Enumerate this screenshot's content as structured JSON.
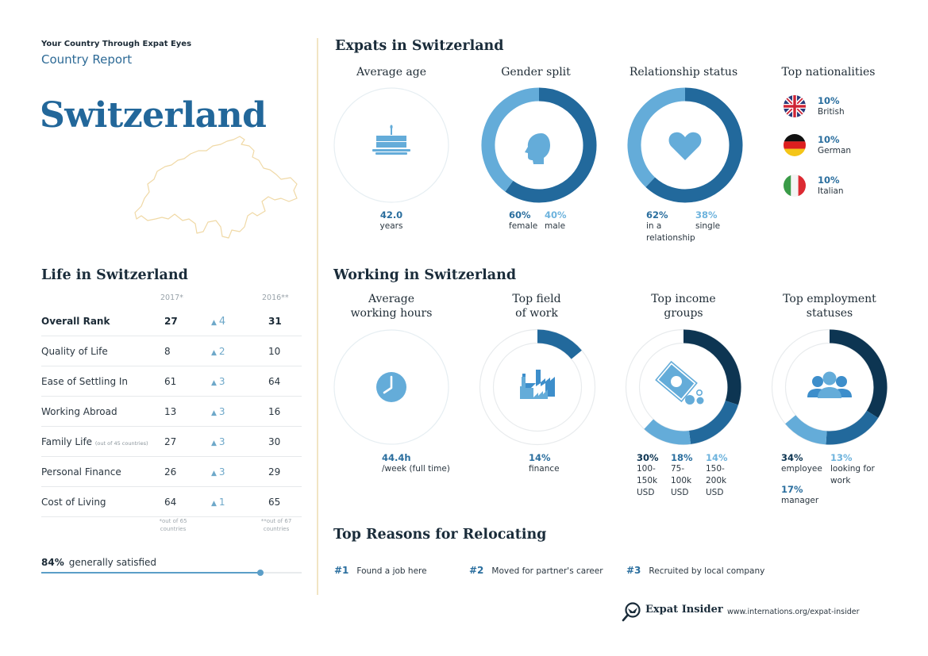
{
  "header": {
    "kicker": "Your Country Through Expat Eyes",
    "subtitle": "Country Report",
    "country": "Switzerland"
  },
  "life": {
    "title": "Life in Switzerland",
    "col_2017": "2017*",
    "col_2016": "2016**",
    "rows": [
      {
        "label": "Overall Rank",
        "note": "",
        "v2017": "27",
        "change": "4",
        "v2016": "31"
      },
      {
        "label": "Quality of Life",
        "note": "",
        "v2017": "8",
        "change": "2",
        "v2016": "10"
      },
      {
        "label": "Ease of Settling In",
        "note": "",
        "v2017": "61",
        "change": "3",
        "v2016": "64"
      },
      {
        "label": "Working Abroad",
        "note": "",
        "v2017": "13",
        "change": "3",
        "v2016": "16"
      },
      {
        "label": "Family Life",
        "note": "(out of 45 countries)",
        "v2017": "27",
        "change": "3",
        "v2016": "30"
      },
      {
        "label": "Personal Finance",
        "note": "",
        "v2017": "26",
        "change": "3",
        "v2016": "29"
      },
      {
        "label": "Cost of Living",
        "note": "",
        "v2017": "64",
        "change": "1",
        "v2016": "65"
      }
    ],
    "footnote_2017": "*out of 65 countries",
    "footnote_2016": "**out of 67 countries",
    "satisfied_pct": "84%",
    "satisfied_label": "generally satisfied",
    "satisfied_value": 84
  },
  "expats": {
    "title": "Expats in Switzerland",
    "age": {
      "heading": "Average age",
      "value": "42.0",
      "unit": "years",
      "icon": "cake-icon"
    },
    "gender": {
      "heading": "Gender split",
      "icon": "head-icon",
      "female_pct": "60%",
      "female_label": "female",
      "female_value": 60,
      "male_pct": "40%",
      "male_label": "male",
      "male_value": 40
    },
    "relationship": {
      "heading": "Relationship status",
      "icon": "heart-icon",
      "rel_pct": "62%",
      "rel_label": "in a relationship",
      "rel_value": 62,
      "single_pct": "38%",
      "single_label": "single",
      "single_value": 38
    },
    "nationalities": {
      "heading": "Top nationalities",
      "items": [
        {
          "pct": "10%",
          "label": "British",
          "flag": "uk-flag-icon"
        },
        {
          "pct": "10%",
          "label": "German",
          "flag": "germany-flag-icon"
        },
        {
          "pct": "10%",
          "label": "Italian",
          "flag": "italy-flag-icon"
        }
      ]
    }
  },
  "working": {
    "title": "Working in Switzerland",
    "hours": {
      "heading_1": "Average",
      "heading_2": "working hours",
      "value": "44.4h",
      "unit": "/week (full time)",
      "icon": "clock-icon"
    },
    "field": {
      "heading_1": "Top field",
      "heading_2": "of work",
      "value": "14%",
      "label": "finance",
      "pct": 14,
      "icon": "factory-icon"
    },
    "income": {
      "heading_1": "Top income",
      "heading_2": "groups",
      "icon": "money-icon",
      "items": [
        {
          "pct": "30%",
          "label": "100-150k USD",
          "value": 30
        },
        {
          "pct": "18%",
          "label": "75-100k USD",
          "value": 18
        },
        {
          "pct": "14%",
          "label": "150-200k USD",
          "value": 14
        }
      ]
    },
    "employment": {
      "heading_1": "Top employment",
      "heading_2": "statuses",
      "icon": "people-icon",
      "items": [
        {
          "pct": "34%",
          "label": "employee",
          "value": 34
        },
        {
          "pct": "17%",
          "label": "manager",
          "value": 17
        },
        {
          "pct": "13%",
          "label": "looking for work",
          "value": 13
        }
      ]
    }
  },
  "reasons": {
    "title": "Top Reasons for Relocating",
    "items": [
      {
        "rank": "#1",
        "label": "Found a job here"
      },
      {
        "rank": "#2",
        "label": "Moved for partner's career"
      },
      {
        "rank": "#3",
        "label": "Recruited by local company"
      }
    ]
  },
  "footer": {
    "brand": "Expat Insider",
    "url": "www.internations.org/expat-insider"
  },
  "colors": {
    "dark": "#0d3552",
    "mid": "#22699c",
    "light": "#64acd9",
    "track": "#e8ebed",
    "accent_title": "#22679a",
    "divider": "#f1e5c4"
  }
}
